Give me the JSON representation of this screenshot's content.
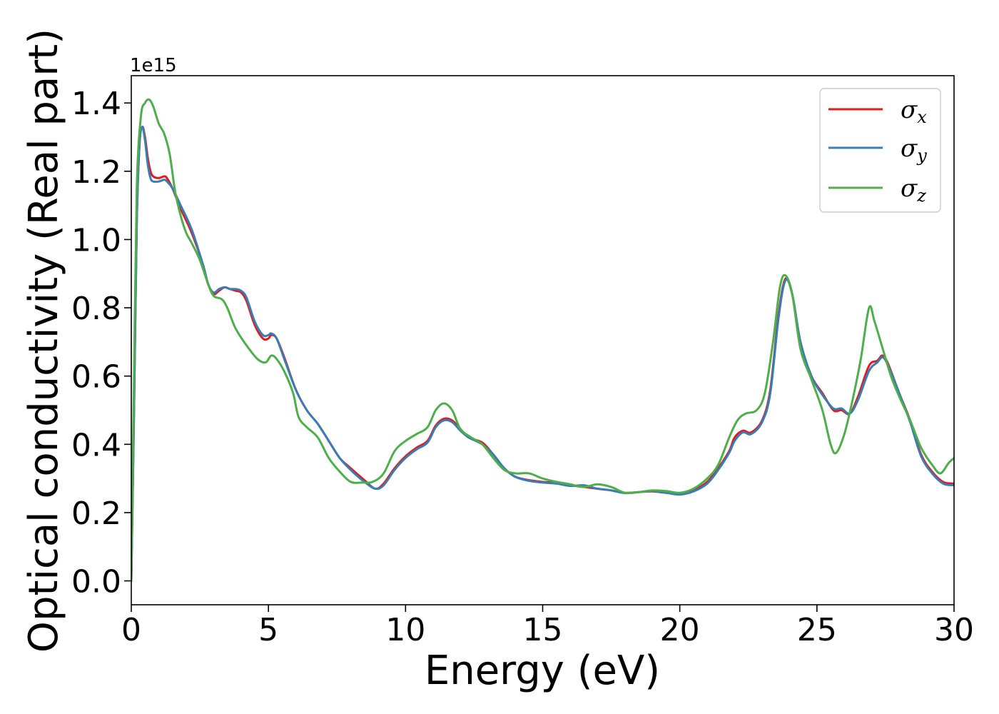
{
  "chart_data": {
    "type": "line",
    "xlabel": "Energy (eV)",
    "ylabel": "Optical conductivity (Real part)",
    "y_offset_label": "1e15",
    "xlim": [
      0,
      30
    ],
    "ylim": [
      -0.07,
      1.48
    ],
    "x_ticks": [
      {
        "value": 0,
        "label": "0"
      },
      {
        "value": 5,
        "label": "5"
      },
      {
        "value": 10,
        "label": "10"
      },
      {
        "value": 15,
        "label": "15"
      },
      {
        "value": 20,
        "label": "20"
      },
      {
        "value": 25,
        "label": "25"
      },
      {
        "value": 30,
        "label": "30"
      }
    ],
    "y_ticks": [
      {
        "value": 0.0,
        "label": "0.0"
      },
      {
        "value": 0.2,
        "label": "0.2"
      },
      {
        "value": 0.4,
        "label": "0.4"
      },
      {
        "value": 0.6,
        "label": "0.6"
      },
      {
        "value": 0.8,
        "label": "0.8"
      },
      {
        "value": 1.0,
        "label": "1.0"
      },
      {
        "value": 1.2,
        "label": "1.2"
      },
      {
        "value": 1.4,
        "label": "1.4"
      }
    ],
    "grid": false,
    "legend_position": "top-right",
    "series": [
      {
        "name": "σx",
        "symbol": "σ",
        "subscript": "x",
        "color": "#e41a1c",
        "points": [
          [
            0,
            0
          ],
          [
            0.1,
            0.5
          ],
          [
            0.2,
            1.05
          ],
          [
            0.3,
            1.28
          ],
          [
            0.4,
            1.33
          ],
          [
            0.5,
            1.3
          ],
          [
            0.6,
            1.24
          ],
          [
            0.7,
            1.2
          ],
          [
            0.8,
            1.185
          ],
          [
            1.0,
            1.18
          ],
          [
            1.2,
            1.185
          ],
          [
            1.3,
            1.18
          ],
          [
            1.5,
            1.15
          ],
          [
            1.8,
            1.09
          ],
          [
            2.2,
            1.02
          ],
          [
            2.6,
            0.93
          ],
          [
            2.8,
            0.87
          ],
          [
            3.0,
            0.84
          ],
          [
            3.2,
            0.85
          ],
          [
            3.4,
            0.86
          ],
          [
            3.6,
            0.855
          ],
          [
            3.8,
            0.85
          ],
          [
            4.0,
            0.845
          ],
          [
            4.2,
            0.82
          ],
          [
            4.5,
            0.75
          ],
          [
            4.8,
            0.71
          ],
          [
            5.0,
            0.71
          ],
          [
            5.1,
            0.72
          ],
          [
            5.3,
            0.71
          ],
          [
            5.6,
            0.65
          ],
          [
            6.0,
            0.56
          ],
          [
            6.4,
            0.5
          ],
          [
            6.8,
            0.46
          ],
          [
            7.2,
            0.41
          ],
          [
            7.6,
            0.36
          ],
          [
            8.0,
            0.33
          ],
          [
            8.5,
            0.295
          ],
          [
            8.9,
            0.27
          ],
          [
            9.2,
            0.285
          ],
          [
            9.6,
            0.33
          ],
          [
            10.0,
            0.365
          ],
          [
            10.4,
            0.39
          ],
          [
            10.8,
            0.41
          ],
          [
            11.1,
            0.455
          ],
          [
            11.4,
            0.475
          ],
          [
            11.7,
            0.47
          ],
          [
            12.0,
            0.445
          ],
          [
            12.3,
            0.42
          ],
          [
            12.8,
            0.405
          ],
          [
            13.2,
            0.37
          ],
          [
            13.6,
            0.33
          ],
          [
            14.0,
            0.305
          ],
          [
            14.5,
            0.295
          ],
          [
            15.0,
            0.29
          ],
          [
            15.5,
            0.287
          ],
          [
            16.0,
            0.28
          ],
          [
            16.5,
            0.275
          ],
          [
            17.0,
            0.27
          ],
          [
            17.5,
            0.265
          ],
          [
            18.0,
            0.258
          ],
          [
            18.5,
            0.26
          ],
          [
            19.0,
            0.262
          ],
          [
            19.5,
            0.258
          ],
          [
            20.0,
            0.255
          ],
          [
            20.5,
            0.265
          ],
          [
            21.0,
            0.29
          ],
          [
            21.4,
            0.33
          ],
          [
            21.8,
            0.38
          ],
          [
            22.0,
            0.42
          ],
          [
            22.3,
            0.44
          ],
          [
            22.6,
            0.435
          ],
          [
            23.0,
            0.47
          ],
          [
            23.3,
            0.56
          ],
          [
            23.6,
            0.78
          ],
          [
            23.85,
            0.885
          ],
          [
            24.1,
            0.84
          ],
          [
            24.4,
            0.7
          ],
          [
            24.8,
            0.6
          ],
          [
            25.2,
            0.55
          ],
          [
            25.6,
            0.5
          ],
          [
            25.9,
            0.5
          ],
          [
            26.2,
            0.49
          ],
          [
            26.5,
            0.54
          ],
          [
            26.9,
            0.63
          ],
          [
            27.2,
            0.645
          ],
          [
            27.4,
            0.66
          ],
          [
            27.6,
            0.635
          ],
          [
            28.0,
            0.55
          ],
          [
            28.4,
            0.47
          ],
          [
            28.8,
            0.37
          ],
          [
            29.2,
            0.32
          ],
          [
            29.6,
            0.29
          ],
          [
            30.0,
            0.285
          ]
        ]
      },
      {
        "name": "σy",
        "symbol": "σ",
        "subscript": "y",
        "color": "#377eb8",
        "points": [
          [
            0,
            0
          ],
          [
            0.1,
            0.5
          ],
          [
            0.2,
            1.05
          ],
          [
            0.3,
            1.28
          ],
          [
            0.4,
            1.33
          ],
          [
            0.5,
            1.29
          ],
          [
            0.6,
            1.22
          ],
          [
            0.7,
            1.18
          ],
          [
            0.8,
            1.17
          ],
          [
            1.0,
            1.17
          ],
          [
            1.2,
            1.175
          ],
          [
            1.3,
            1.17
          ],
          [
            1.5,
            1.15
          ],
          [
            1.8,
            1.1
          ],
          [
            2.2,
            1.03
          ],
          [
            2.6,
            0.93
          ],
          [
            2.8,
            0.87
          ],
          [
            3.0,
            0.845
          ],
          [
            3.2,
            0.855
          ],
          [
            3.4,
            0.86
          ],
          [
            3.6,
            0.855
          ],
          [
            3.8,
            0.855
          ],
          [
            4.0,
            0.85
          ],
          [
            4.2,
            0.83
          ],
          [
            4.5,
            0.76
          ],
          [
            4.8,
            0.72
          ],
          [
            5.0,
            0.72
          ],
          [
            5.1,
            0.725
          ],
          [
            5.3,
            0.71
          ],
          [
            5.6,
            0.645
          ],
          [
            6.0,
            0.56
          ],
          [
            6.4,
            0.5
          ],
          [
            6.8,
            0.46
          ],
          [
            7.2,
            0.41
          ],
          [
            7.6,
            0.36
          ],
          [
            8.0,
            0.325
          ],
          [
            8.5,
            0.29
          ],
          [
            8.9,
            0.27
          ],
          [
            9.2,
            0.28
          ],
          [
            9.6,
            0.325
          ],
          [
            10.0,
            0.36
          ],
          [
            10.4,
            0.385
          ],
          [
            10.8,
            0.405
          ],
          [
            11.1,
            0.45
          ],
          [
            11.4,
            0.47
          ],
          [
            11.7,
            0.465
          ],
          [
            12.0,
            0.44
          ],
          [
            12.3,
            0.42
          ],
          [
            12.8,
            0.4
          ],
          [
            13.2,
            0.37
          ],
          [
            13.6,
            0.33
          ],
          [
            14.0,
            0.305
          ],
          [
            14.5,
            0.293
          ],
          [
            15.0,
            0.288
          ],
          [
            15.5,
            0.285
          ],
          [
            16.0,
            0.278
          ],
          [
            16.5,
            0.28
          ],
          [
            17.0,
            0.27
          ],
          [
            17.5,
            0.265
          ],
          [
            18.0,
            0.257
          ],
          [
            18.5,
            0.26
          ],
          [
            19.0,
            0.263
          ],
          [
            19.5,
            0.258
          ],
          [
            20.0,
            0.253
          ],
          [
            20.5,
            0.262
          ],
          [
            21.0,
            0.285
          ],
          [
            21.4,
            0.325
          ],
          [
            21.8,
            0.375
          ],
          [
            22.0,
            0.41
          ],
          [
            22.3,
            0.435
          ],
          [
            22.6,
            0.43
          ],
          [
            23.0,
            0.465
          ],
          [
            23.3,
            0.55
          ],
          [
            23.6,
            0.77
          ],
          [
            23.85,
            0.88
          ],
          [
            24.1,
            0.84
          ],
          [
            24.4,
            0.7
          ],
          [
            24.8,
            0.6
          ],
          [
            25.2,
            0.545
          ],
          [
            25.6,
            0.505
          ],
          [
            25.9,
            0.505
          ],
          [
            26.2,
            0.49
          ],
          [
            26.5,
            0.53
          ],
          [
            26.9,
            0.615
          ],
          [
            27.2,
            0.64
          ],
          [
            27.4,
            0.655
          ],
          [
            27.6,
            0.63
          ],
          [
            28.0,
            0.55
          ],
          [
            28.4,
            0.465
          ],
          [
            28.8,
            0.365
          ],
          [
            29.2,
            0.315
          ],
          [
            29.6,
            0.285
          ],
          [
            30.0,
            0.28
          ]
        ]
      },
      {
        "name": "σz",
        "symbol": "σ",
        "subscript": "z",
        "color": "#4daf4a",
        "points": [
          [
            0,
            0
          ],
          [
            0.1,
            0.6
          ],
          [
            0.2,
            1.15
          ],
          [
            0.35,
            1.36
          ],
          [
            0.5,
            1.4
          ],
          [
            0.65,
            1.41
          ],
          [
            0.8,
            1.39
          ],
          [
            1.0,
            1.34
          ],
          [
            1.2,
            1.31
          ],
          [
            1.4,
            1.25
          ],
          [
            1.6,
            1.14
          ],
          [
            1.8,
            1.07
          ],
          [
            2.0,
            1.02
          ],
          [
            2.2,
            0.99
          ],
          [
            2.5,
            0.94
          ],
          [
            2.8,
            0.87
          ],
          [
            3.0,
            0.835
          ],
          [
            3.3,
            0.825
          ],
          [
            3.5,
            0.8
          ],
          [
            3.8,
            0.74
          ],
          [
            4.2,
            0.69
          ],
          [
            4.6,
            0.65
          ],
          [
            4.9,
            0.64
          ],
          [
            5.1,
            0.66
          ],
          [
            5.3,
            0.65
          ],
          [
            5.6,
            0.61
          ],
          [
            5.9,
            0.55
          ],
          [
            6.1,
            0.48
          ],
          [
            6.4,
            0.45
          ],
          [
            6.8,
            0.42
          ],
          [
            7.2,
            0.36
          ],
          [
            7.6,
            0.32
          ],
          [
            8.0,
            0.29
          ],
          [
            8.4,
            0.288
          ],
          [
            8.8,
            0.29
          ],
          [
            9.2,
            0.315
          ],
          [
            9.6,
            0.38
          ],
          [
            10.0,
            0.41
          ],
          [
            10.4,
            0.43
          ],
          [
            10.8,
            0.45
          ],
          [
            11.1,
            0.5
          ],
          [
            11.4,
            0.52
          ],
          [
            11.7,
            0.5
          ],
          [
            12.0,
            0.445
          ],
          [
            12.4,
            0.42
          ],
          [
            12.8,
            0.4
          ],
          [
            13.2,
            0.36
          ],
          [
            13.6,
            0.325
          ],
          [
            14.0,
            0.315
          ],
          [
            14.5,
            0.315
          ],
          [
            15.0,
            0.3
          ],
          [
            15.5,
            0.29
          ],
          [
            16.0,
            0.283
          ],
          [
            16.5,
            0.275
          ],
          [
            17.0,
            0.283
          ],
          [
            17.5,
            0.275
          ],
          [
            18.0,
            0.258
          ],
          [
            18.5,
            0.26
          ],
          [
            19.0,
            0.265
          ],
          [
            19.5,
            0.263
          ],
          [
            20.0,
            0.258
          ],
          [
            20.5,
            0.27
          ],
          [
            21.0,
            0.3
          ],
          [
            21.4,
            0.34
          ],
          [
            21.8,
            0.42
          ],
          [
            22.1,
            0.47
          ],
          [
            22.4,
            0.49
          ],
          [
            22.8,
            0.5
          ],
          [
            23.1,
            0.55
          ],
          [
            23.4,
            0.7
          ],
          [
            23.65,
            0.86
          ],
          [
            23.85,
            0.895
          ],
          [
            24.1,
            0.84
          ],
          [
            24.4,
            0.68
          ],
          [
            24.8,
            0.59
          ],
          [
            25.2,
            0.5
          ],
          [
            25.5,
            0.4
          ],
          [
            25.7,
            0.375
          ],
          [
            26.0,
            0.43
          ],
          [
            26.3,
            0.53
          ],
          [
            26.6,
            0.65
          ],
          [
            26.9,
            0.8
          ],
          [
            27.1,
            0.76
          ],
          [
            27.4,
            0.68
          ],
          [
            27.7,
            0.6
          ],
          [
            28.0,
            0.54
          ],
          [
            28.4,
            0.47
          ],
          [
            28.8,
            0.39
          ],
          [
            29.2,
            0.34
          ],
          [
            29.5,
            0.315
          ],
          [
            29.8,
            0.345
          ],
          [
            30.0,
            0.36
          ]
        ]
      }
    ]
  }
}
